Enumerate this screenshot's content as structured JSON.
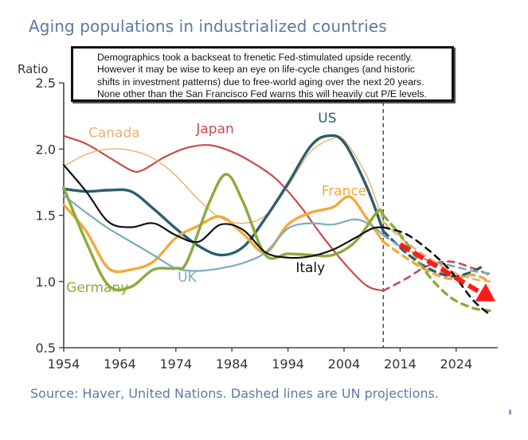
{
  "title": "Aging populations in industrialized countries",
  "callout": {
    "lines": [
      "Demographics took a backseat to frenetic Fed-stimulated upside recently.",
      "However it may be wise to keep an eye on life-cycle changes (and historic",
      "shifts in investment patterns) due to free-world aging over the next 20 years.",
      "None other than the San Francisco Fed warns this will heavily cut P/E levels."
    ]
  },
  "source": "Source: Haver, United Nations. Dashed lines are UN projections.",
  "chart_data": {
    "type": "line",
    "title": "Aging populations in industrialized countries",
    "xlabel": "",
    "ylabel": "Ratio",
    "xlim": [
      1954,
      2031
    ],
    "ylim": [
      0.5,
      2.5
    ],
    "xticks": [
      1954,
      1964,
      1974,
      1984,
      1994,
      2004,
      2014,
      2024
    ],
    "yticks": [
      0.5,
      1.0,
      1.5,
      2.0,
      2.5
    ],
    "ytick_labels": [
      "0.5",
      "1.0",
      "1.5",
      "2.0",
      "2.5"
    ],
    "grid": false,
    "projection_start_year": 2011,
    "annotation": "Dashed lines are UN projections",
    "trend_arrow": {
      "color": "#ff1a1a",
      "from": [
        2014,
        1.28
      ],
      "to": [
        2031,
        0.85
      ],
      "style": "dashed-arrow"
    },
    "series": [
      {
        "name": "Japan",
        "color": "#c94a4f",
        "width": "medium",
        "label_pos": [
          1981,
          2.12
        ],
        "x": [
          1954,
          1958,
          1962,
          1966,
          1968,
          1972,
          1976,
          1980,
          1984,
          1988,
          1992,
          1996,
          2000,
          2004,
          2008,
          2011
        ],
        "values": [
          2.1,
          2.04,
          1.94,
          1.84,
          1.84,
          1.94,
          2.01,
          2.03,
          1.98,
          1.89,
          1.77,
          1.58,
          1.35,
          1.14,
          0.97,
          0.93
        ],
        "proj_x": [
          2011,
          2015,
          2019,
          2023,
          2027,
          2030
        ],
        "proj_values": [
          0.93,
          1.02,
          1.12,
          1.15,
          1.1,
          1.05
        ]
      },
      {
        "name": "Canada",
        "color": "#e8b26a",
        "width": "thin",
        "label_pos": [
          1963,
          2.09
        ],
        "x": [
          1954,
          1958,
          1962,
          1966,
          1970,
          1974,
          1978,
          1982,
          1986,
          1990,
          1994,
          1998,
          2002,
          2004,
          2008,
          2011
        ],
        "values": [
          1.87,
          1.96,
          2.0,
          1.99,
          1.93,
          1.8,
          1.62,
          1.48,
          1.44,
          1.5,
          1.72,
          1.98,
          2.08,
          2.07,
          1.8,
          1.45
        ],
        "proj_x": [
          2011,
          2015,
          2019,
          2023,
          2027,
          2030
        ],
        "proj_values": [
          1.45,
          1.3,
          1.18,
          1.08,
          1.02,
          1.0
        ]
      },
      {
        "name": "US",
        "color": "#2b5d70",
        "width": "thick",
        "label_pos": [
          2001,
          2.2
        ],
        "x": [
          1954,
          1958,
          1962,
          1966,
          1970,
          1974,
          1978,
          1982,
          1986,
          1990,
          1994,
          1998,
          2001,
          2004,
          2008,
          2011
        ],
        "values": [
          1.7,
          1.68,
          1.69,
          1.68,
          1.55,
          1.4,
          1.27,
          1.2,
          1.26,
          1.48,
          1.74,
          2.02,
          2.1,
          2.05,
          1.72,
          1.38
        ],
        "proj_x": [
          2011,
          2015,
          2019,
          2023,
          2026,
          2029
        ],
        "proj_values": [
          1.38,
          1.22,
          1.1,
          1.04,
          1.06,
          1.12
        ]
      },
      {
        "name": "France",
        "color": "#f2a93b",
        "width": "thick",
        "label_pos": [
          2004,
          1.65
        ],
        "x": [
          1954,
          1958,
          1962,
          1966,
          1970,
          1974,
          1978,
          1982,
          1986,
          1990,
          1994,
          1998,
          2002,
          2005,
          2008,
          2011
        ],
        "values": [
          1.58,
          1.38,
          1.1,
          1.09,
          1.15,
          1.33,
          1.42,
          1.49,
          1.36,
          1.22,
          1.43,
          1.52,
          1.56,
          1.64,
          1.48,
          1.3
        ],
        "proj_x": [
          2011,
          2015,
          2019,
          2023,
          2027,
          2030
        ],
        "proj_values": [
          1.3,
          1.18,
          1.08,
          1.02,
          1.05,
          1.0
        ]
      },
      {
        "name": "UK",
        "color": "#7aabc0",
        "width": "medium",
        "label_pos": [
          1976,
          1.0
        ],
        "x": [
          1954,
          1958,
          1962,
          1966,
          1970,
          1974,
          1978,
          1982,
          1986,
          1990,
          1994,
          1998,
          2002,
          2006,
          2009,
          2011
        ],
        "values": [
          1.65,
          1.52,
          1.4,
          1.3,
          1.2,
          1.1,
          1.08,
          1.1,
          1.14,
          1.22,
          1.4,
          1.44,
          1.43,
          1.47,
          1.42,
          1.35
        ],
        "proj_x": [
          2011,
          2015,
          2019,
          2023,
          2027,
          2030
        ],
        "proj_values": [
          1.35,
          1.24,
          1.16,
          1.12,
          1.08,
          1.06
        ]
      },
      {
        "name": "Germany",
        "color": "#8aab3c",
        "width": "thick",
        "label_pos": [
          1960,
          0.92
        ],
        "x": [
          1954,
          1958,
          1962,
          1966,
          1970,
          1974,
          1976,
          1980,
          1983,
          1986,
          1990,
          1994,
          1998,
          2002,
          2006,
          2010,
          2011
        ],
        "values": [
          1.71,
          1.3,
          0.97,
          0.96,
          1.09,
          1.1,
          1.15,
          1.6,
          1.81,
          1.6,
          1.2,
          1.21,
          1.2,
          1.2,
          1.3,
          1.53,
          1.5
        ],
        "proj_x": [
          2011,
          2015,
          2019,
          2023,
          2027,
          2030
        ],
        "proj_values": [
          1.5,
          1.3,
          1.05,
          0.88,
          0.8,
          0.78
        ]
      },
      {
        "name": "Italy",
        "color": "#111111",
        "width": "medium",
        "label_pos": [
          1998,
          1.07
        ],
        "x": [
          1954,
          1958,
          1962,
          1966,
          1970,
          1974,
          1978,
          1982,
          1986,
          1990,
          1994,
          1998,
          2002,
          2006,
          2009,
          2011
        ],
        "values": [
          1.88,
          1.68,
          1.45,
          1.41,
          1.44,
          1.35,
          1.3,
          1.43,
          1.39,
          1.22,
          1.18,
          1.19,
          1.24,
          1.33,
          1.4,
          1.41
        ],
        "proj_x": [
          2011,
          2015,
          2019,
          2023,
          2027,
          2030
        ],
        "proj_values": [
          1.41,
          1.36,
          1.24,
          1.08,
          0.86,
          0.75
        ]
      }
    ]
  }
}
